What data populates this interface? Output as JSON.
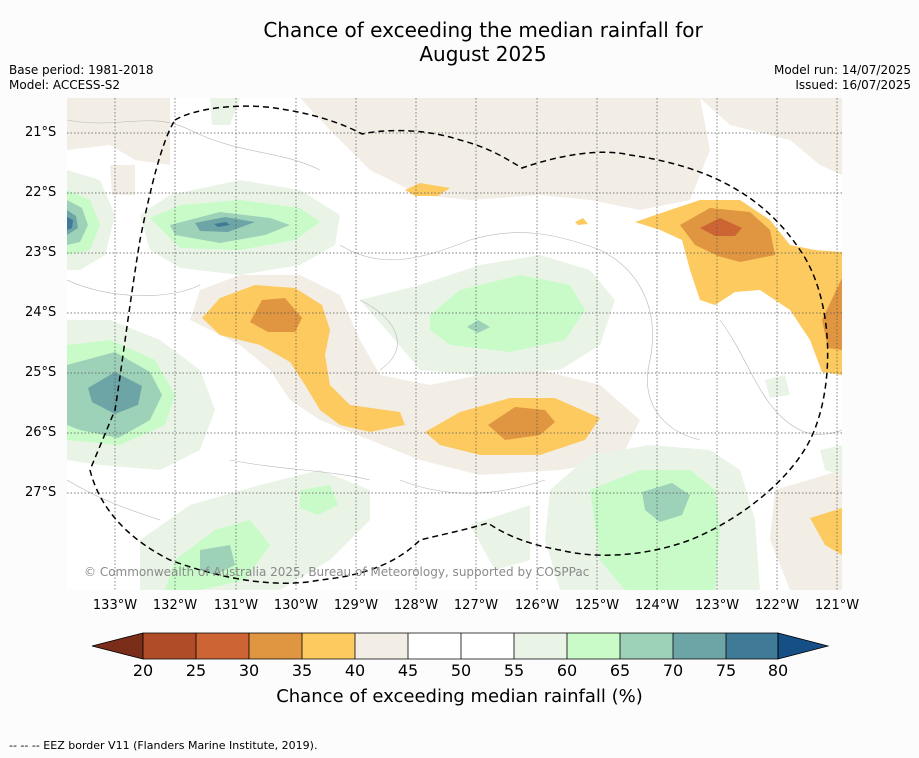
{
  "title_line1": "Chance of exceeding the median rainfall for",
  "title_line2": "August 2025",
  "base_period": "Base period: 1981-2018",
  "model": "Model: ACCESS-S2",
  "model_run": "Model run: 14/07/2025",
  "issued": "Issued: 16/07/2025",
  "copyright": "© Commonwealth of Australia 2025, Bureau of Meteorology, supported by COSPPac",
  "lat_labels": [
    "21°S",
    "22°S",
    "23°S",
    "24°S",
    "25°S",
    "26°S",
    "27°S"
  ],
  "lon_labels": [
    "133°W",
    "132°W",
    "131°W",
    "130°W",
    "129°W",
    "128°W",
    "127°W",
    "126°W",
    "125°W",
    "124°W",
    "123°W",
    "122°W",
    "121°W"
  ],
  "colorbar": {
    "ticks": [
      "20",
      "25",
      "30",
      "35",
      "40",
      "45",
      "50",
      "55",
      "60",
      "65",
      "70",
      "75",
      "80"
    ],
    "label": "Chance of exceeding median rainfall (%)",
    "colors": [
      "#7a2e1a",
      "#b04c28",
      "#cc6533",
      "#e09540",
      "#fdca60",
      "#f2eee6",
      "#ffffff",
      "#ffffff",
      "#e9f4e7",
      "#c8fbc8",
      "#9dd1b8",
      "#6da5a6",
      "#3f7a97",
      "#164f85"
    ]
  },
  "footnote": "--  --  -- EEZ border V11 (Flanders Marine Institute, 2019)."
}
